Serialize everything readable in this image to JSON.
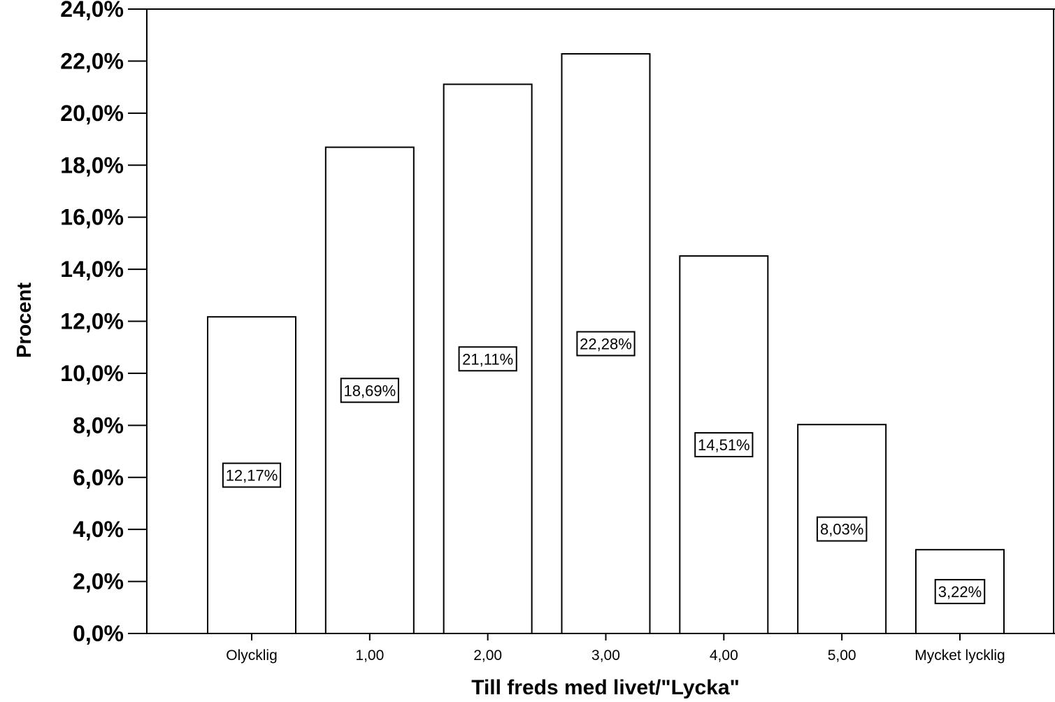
{
  "chart_data": {
    "type": "bar",
    "categories": [
      "Olycklig",
      "1,00",
      "2,00",
      "3,00",
      "4,00",
      "5,00",
      "Mycket lycklig"
    ],
    "values": [
      12.17,
      18.69,
      21.11,
      22.28,
      14.51,
      8.03,
      3.22
    ],
    "data_labels": [
      "12,17%",
      "18,69%",
      "21,11%",
      "22,28%",
      "14,51%",
      "8,03%",
      "3,22%"
    ],
    "yticks": [
      0,
      2,
      4,
      6,
      8,
      10,
      12,
      14,
      16,
      18,
      20,
      22,
      24
    ],
    "ytick_labels": [
      "0,0%",
      "2,0%",
      "4,0%",
      "6,0%",
      "8,0%",
      "10,0%",
      "12,0%",
      "14,0%",
      "16,0%",
      "18,0%",
      "20,0%",
      "22,0%",
      "24,0%"
    ],
    "ylim": [
      0,
      24
    ],
    "xlabel": "Till freds med livet/\"Lycka\"",
    "ylabel": "Procent",
    "grid": false,
    "legend": "none",
    "bar_fill": "#ffffff",
    "bar_stroke": "#000000"
  }
}
